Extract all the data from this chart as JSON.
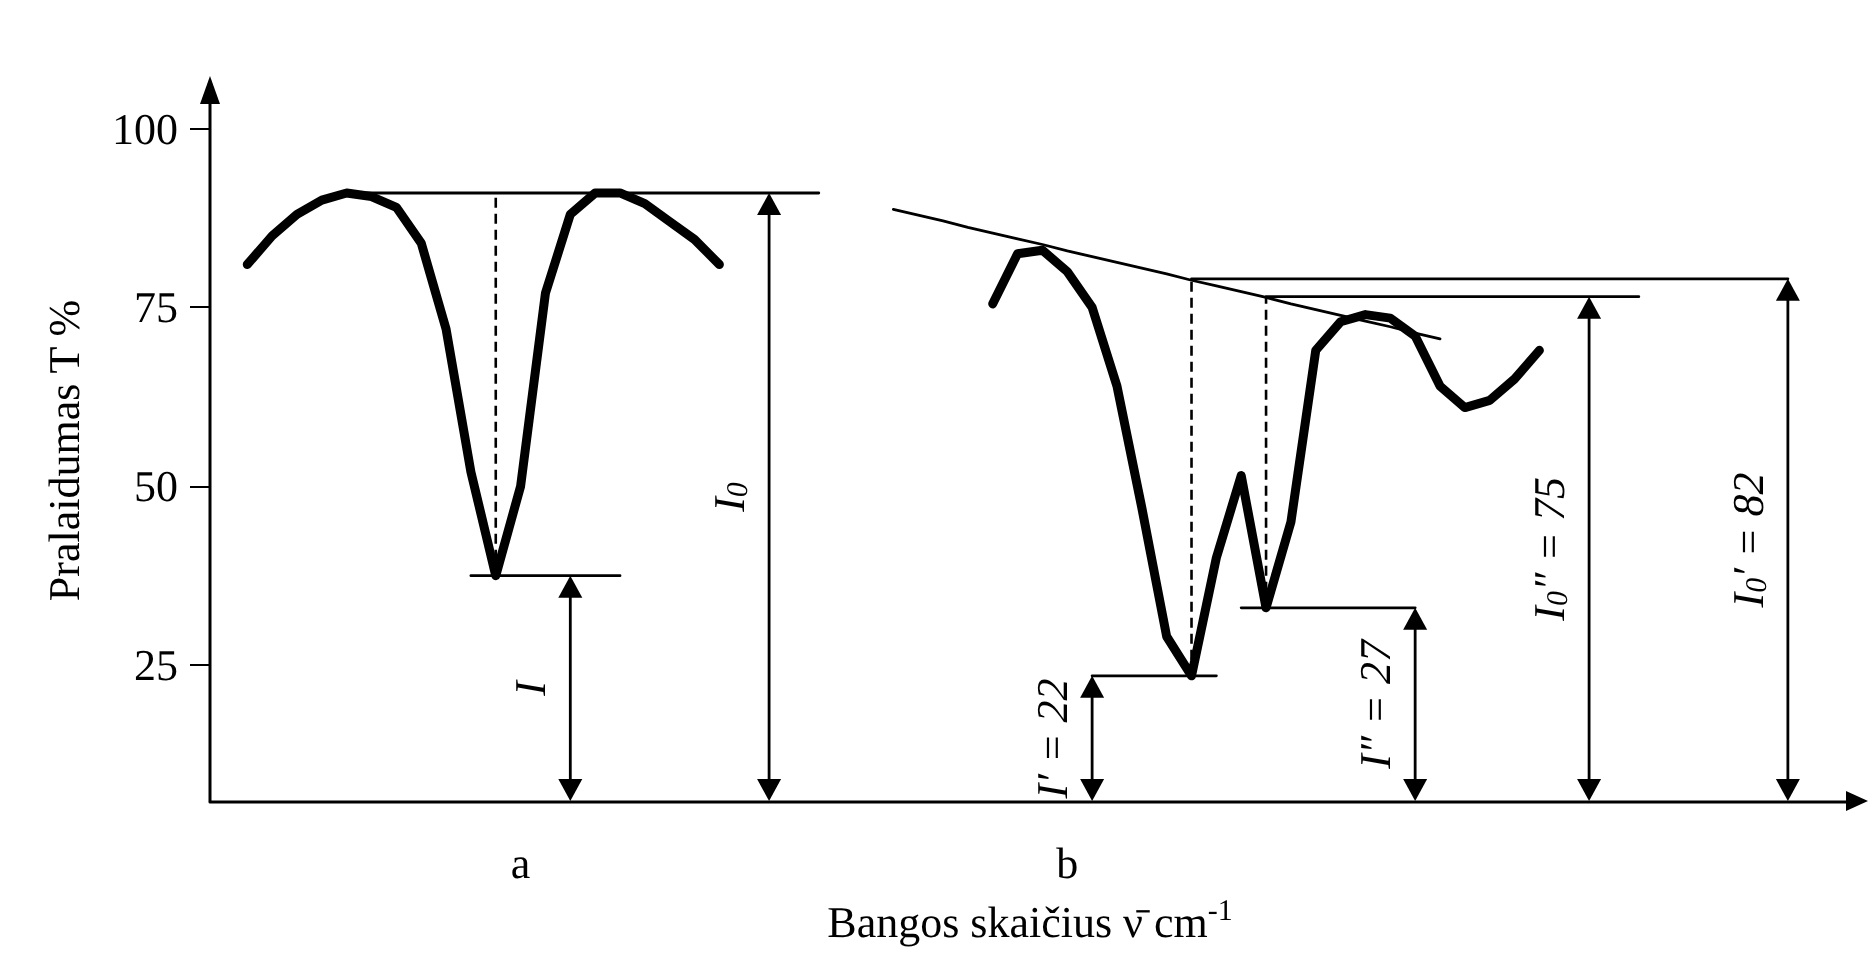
{
  "chart_data": {
    "type": "line",
    "xlabel": "Bangos skaičius ν̄ cm$^{-1}$",
    "ylabel": "Pralaidumas T %",
    "ylim": [
      6,
      104
    ],
    "yticks": [
      25,
      50,
      75,
      100
    ],
    "tick_labels": "y",
    "grid": false,
    "categories": [
      null,
      null,
      null,
      null,
      null,
      null,
      null,
      null,
      null,
      null,
      null,
      null,
      null,
      null,
      null,
      null,
      null,
      null,
      null,
      null,
      null,
      null,
      null,
      null,
      null,
      null,
      null,
      null,
      null,
      null,
      null,
      null,
      null,
      null,
      null,
      null,
      null,
      null,
      null,
      null,
      null,
      null,
      null,
      null,
      null,
      null,
      null,
      null,
      null,
      null,
      null,
      null,
      null,
      null,
      null,
      null,
      null,
      null,
      null,
      null,
      null,
      null,
      null,
      null,
      null,
      null
    ],
    "series": [
      {
        "color": "#000000",
        "line_style": "solid",
        "values": [
          null,
          81,
          85,
          88,
          90,
          91,
          90.5,
          89,
          84,
          72,
          52,
          37.5,
          50,
          77,
          88,
          91,
          91,
          89.5,
          87,
          84.5,
          81,
          null,
          null,
          null,
          null,
          null,
          null,
          null,
          null,
          null,
          null,
          null,
          null,
          null,
          null,
          null,
          null,
          null,
          null,
          null,
          null,
          null,
          null,
          null,
          null,
          null,
          null,
          null,
          null,
          null,
          null,
          null,
          null,
          null,
          null,
          null,
          null,
          null,
          null,
          null,
          null,
          null,
          null,
          null,
          null,
          null
        ]
      },
      {
        "color": "#000000",
        "line_style": "solid",
        "values": [
          null,
          null,
          null,
          null,
          null,
          null,
          null,
          null,
          null,
          null,
          null,
          null,
          null,
          null,
          null,
          null,
          null,
          null,
          null,
          null,
          null,
          null,
          null,
          null,
          null,
          null,
          null,
          null,
          null,
          null,
          null,
          75.5,
          82.5,
          83,
          80,
          75,
          64,
          47,
          29,
          23.5,
          40,
          51.5,
          33,
          45,
          69,
          73,
          74,
          73.5,
          71,
          64,
          61,
          62,
          65,
          69,
          null,
          null,
          null,
          null,
          null,
          null,
          null,
          null,
          null,
          null,
          null,
          null
        ]
      },
      {
        "color": "#000000",
        "line_style": "solid",
        "values": [
          null,
          null,
          null,
          null,
          null,
          91,
          91,
          91,
          91,
          91,
          91,
          91,
          91,
          91,
          91,
          91,
          91,
          91,
          91,
          91,
          91,
          91,
          91,
          91,
          91,
          null,
          null,
          null,
          null,
          null,
          null,
          null,
          null,
          null,
          null,
          null,
          null,
          null,
          null,
          null,
          null,
          null,
          null,
          null,
          null,
          null,
          null,
          null,
          null,
          null,
          null,
          null,
          null,
          null,
          null,
          null,
          null,
          null,
          null,
          null,
          null,
          null,
          null,
          null,
          null,
          null
        ]
      },
      {
        "color": "#000000",
        "line_style": "solid",
        "values": [
          null,
          null,
          null,
          null,
          null,
          null,
          null,
          null,
          null,
          null,
          37.5,
          37.5,
          37.5,
          37.5,
          37.5,
          37.5,
          37.5,
          null,
          null,
          null,
          null,
          null,
          null,
          null,
          null,
          null,
          null,
          null,
          null,
          null,
          null,
          null,
          null,
          null,
          null,
          null,
          null,
          null,
          null,
          null,
          null,
          null,
          null,
          null,
          null,
          null,
          null,
          null,
          null,
          null,
          null,
          null,
          null,
          null,
          null,
          null,
          null,
          null,
          null,
          null,
          null,
          null,
          null,
          null,
          null,
          null
        ]
      },
      {
        "color": "#000000",
        "line_style": "solid",
        "values": [
          null,
          null,
          null,
          null,
          null,
          null,
          null,
          null,
          null,
          null,
          null,
          null,
          null,
          null,
          null,
          null,
          null,
          null,
          null,
          null,
          null,
          null,
          null,
          null,
          null,
          null,
          null,
          88.7,
          87.9,
          87.1,
          86.2,
          85.4,
          84.6,
          83.8,
          82.9,
          82.1,
          81.3,
          80.5,
          79.7,
          78.8,
          78.0,
          77.2,
          76.4,
          75.5,
          74.7,
          73.9,
          73.1,
          72.3,
          71.4,
          70.6,
          null,
          null,
          null,
          null,
          null,
          null,
          null,
          null,
          null,
          null,
          null,
          null,
          null,
          null,
          null,
          null
        ]
      },
      {
        "color": "#000000",
        "line_style": "solid",
        "values": [
          null,
          null,
          null,
          null,
          null,
          null,
          null,
          null,
          null,
          null,
          null,
          null,
          null,
          null,
          null,
          null,
          null,
          null,
          null,
          null,
          null,
          null,
          null,
          null,
          null,
          null,
          null,
          null,
          null,
          null,
          null,
          null,
          null,
          null,
          null,
          null,
          null,
          null,
          null,
          79,
          79,
          79,
          79,
          79,
          79,
          79,
          79,
          79,
          79,
          79,
          79,
          79,
          79,
          79,
          79,
          79,
          79,
          79,
          79,
          79,
          79,
          79,
          79,
          79,
          null,
          null
        ]
      },
      {
        "color": "#000000",
        "line_style": "solid",
        "values": [
          null,
          null,
          null,
          null,
          null,
          null,
          null,
          null,
          null,
          null,
          null,
          null,
          null,
          null,
          null,
          null,
          null,
          null,
          null,
          null,
          null,
          null,
          null,
          null,
          null,
          null,
          null,
          null,
          null,
          null,
          null,
          null,
          null,
          null,
          null,
          null,
          null,
          null,
          null,
          null,
          null,
          null,
          76.5,
          76.5,
          76.5,
          76.5,
          76.5,
          76.5,
          76.5,
          76.5,
          76.5,
          76.5,
          76.5,
          76.5,
          76.5,
          76.5,
          76.5,
          76.5,
          null,
          null,
          null,
          null,
          null,
          null,
          null,
          null
        ]
      },
      {
        "color": "#000000",
        "line_style": "solid",
        "values": [
          null,
          null,
          null,
          null,
          null,
          null,
          null,
          null,
          null,
          null,
          null,
          null,
          null,
          null,
          null,
          null,
          null,
          null,
          null,
          null,
          null,
          null,
          null,
          null,
          null,
          null,
          null,
          null,
          null,
          null,
          null,
          null,
          null,
          null,
          null,
          23.5,
          23.5,
          23.5,
          23.5,
          23.5,
          23.5,
          null,
          null,
          null,
          null,
          null,
          null,
          null,
          null,
          null,
          null,
          null,
          null,
          null,
          null,
          null,
          null,
          null,
          null,
          null,
          null,
          null,
          null,
          null,
          null,
          null
        ]
      },
      {
        "color": "#000000",
        "line_style": "solid",
        "values": [
          null,
          null,
          null,
          null,
          null,
          null,
          null,
          null,
          null,
          null,
          null,
          null,
          null,
          null,
          null,
          null,
          null,
          null,
          null,
          null,
          null,
          null,
          null,
          null,
          null,
          null,
          null,
          null,
          null,
          null,
          null,
          null,
          null,
          null,
          null,
          null,
          null,
          null,
          null,
          null,
          null,
          33,
          33,
          33,
          33,
          33,
          33,
          33,
          33,
          null,
          null,
          null,
          null,
          null,
          null,
          null,
          null,
          null,
          null,
          null,
          null,
          null,
          null,
          null,
          null,
          null
        ]
      }
    ],
    "annotations": [
      "I",
      "I$_{0}$",
      "I′ = 22",
      "I″ = 27",
      "I$_{0}$″ = 75",
      "I$_{0}$′ = 82",
      "a",
      "b"
    ]
  }
}
